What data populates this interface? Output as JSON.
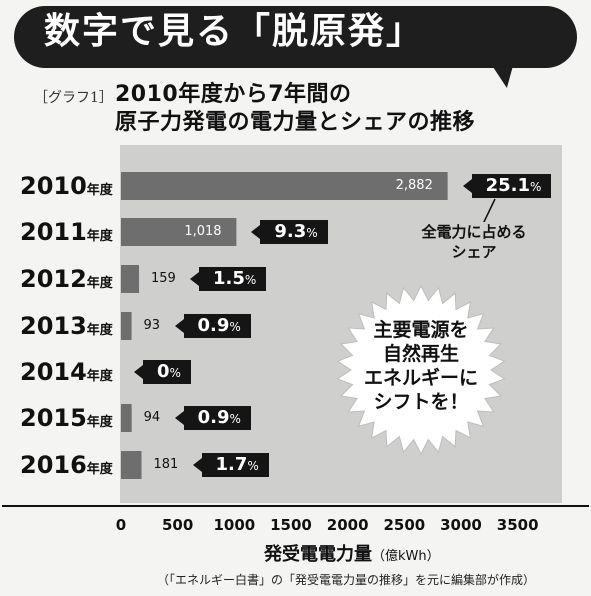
{
  "header": {
    "banner_title": "数字で見る「脱原発」",
    "graph_label": "［グラフ1］",
    "subtitle_line1": "2010年度から7年間の",
    "subtitle_line2": "原子力発電の電力量とシェアの推移"
  },
  "annotations": {
    "share_note_line1": "全電力に占める",
    "share_note_line2": "シェア",
    "starburst_line1": "主要電源を",
    "starburst_line2": "自然再生",
    "starburst_line3": "エネルギーに",
    "starburst_line4": "シフトを！"
  },
  "source_note": "（「エネルギー白書」の「発受電電力量の推移」を元に編集部が作成）",
  "colors": {
    "banner": "#1e1e1e",
    "panel": "#cfcfcd",
    "bar": "#6e6e6e",
    "tag": "#151515"
  },
  "chart_data": {
    "type": "bar",
    "orientation": "horizontal",
    "year_suffix": "年度",
    "categories": [
      "2010",
      "2011",
      "2012",
      "2013",
      "2014",
      "2015",
      "2016"
    ],
    "values": [
      2882,
      1018,
      159,
      93,
      0,
      94,
      181
    ],
    "value_labels": [
      "2,882",
      "1,018",
      "159",
      "93",
      "",
      "94",
      "181"
    ],
    "shares": [
      "25.1",
      "9.3",
      "1.5",
      "0.9",
      "0",
      "0.9",
      "1.7"
    ],
    "share_unit": "%",
    "xlabel": "発受電電力量",
    "xunit": "（億kWh）",
    "xlim": [
      0,
      3500
    ],
    "xticks": [
      "0",
      "500",
      "1000",
      "1500",
      "2000",
      "2500",
      "3000",
      "3500"
    ],
    "grid": false
  }
}
